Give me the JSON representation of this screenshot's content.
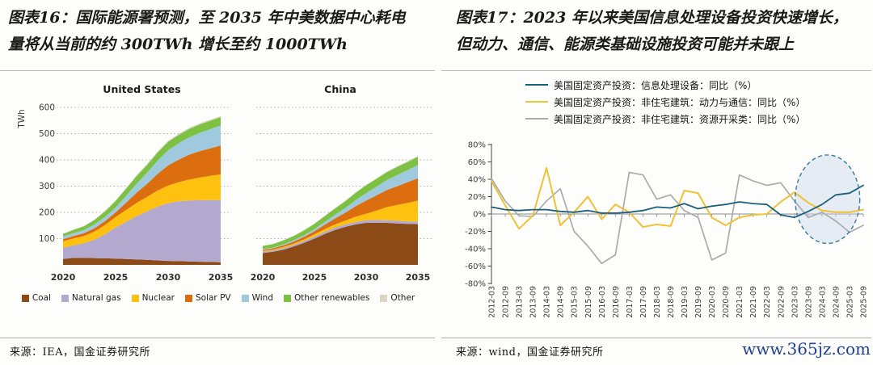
{
  "page": {
    "watermark": {
      "text": "www.365jz.com",
      "color": "#1e3f96"
    }
  },
  "left_panel": {
    "title_lines": [
      "图表16：国际能源署预测，至 2035 年中美数据中心耗电",
      "量将从当前的约 300TWh 增长至约 1000TWh"
    ],
    "source": "来源：IEA，国金证券研究所"
  },
  "right_panel": {
    "title_lines": [
      "图表17：2023 年以来美国信息处理设备投资快速增长，",
      "但动力、通信、能源类基础设施投资可能并未跟上"
    ],
    "source": "来源：wind，国金证券研究所"
  },
  "chart_data": [
    {
      "id": "us-datacenter-power",
      "type": "area",
      "stacked": true,
      "title": "United States",
      "ylabel": "TWh",
      "ylim": [
        0,
        620
      ],
      "yticks": [
        100,
        200,
        300,
        400,
        500,
        600
      ],
      "xticks": [
        2020,
        2025,
        2030,
        2035
      ],
      "grid": "dotted",
      "x": [
        2020,
        2021,
        2022,
        2023,
        2024,
        2025,
        2026,
        2027,
        2028,
        2029,
        2030,
        2031,
        2032,
        2033,
        2034,
        2035
      ],
      "series": [
        {
          "name": "Coal",
          "color": "#8b4a16",
          "values": [
            22,
            27,
            27,
            26,
            25,
            24,
            22,
            21,
            19,
            17,
            15,
            14,
            13,
            12,
            11,
            10
          ]
        },
        {
          "name": "Natural gas",
          "color": "#b3a8ce",
          "values": [
            43,
            48,
            55,
            70,
            92,
            118,
            142,
            165,
            185,
            205,
            220,
            228,
            232,
            235,
            236,
            237
          ]
        },
        {
          "name": "Nuclear",
          "color": "#fec110",
          "values": [
            25,
            26,
            28,
            31,
            35,
            40,
            45,
            50,
            55,
            61,
            67,
            73,
            80,
            86,
            92,
            98
          ]
        },
        {
          "name": "Solar PV",
          "color": "#dd6e10",
          "values": [
            8,
            9,
            11,
            13,
            15,
            18,
            28,
            39,
            50,
            64,
            77,
            86,
            95,
            100,
            105,
            110
          ]
        },
        {
          "name": "Wind",
          "color": "#9fcadd",
          "values": [
            10,
            11,
            12,
            14,
            16,
            18,
            26,
            34,
            42,
            50,
            58,
            62,
            66,
            70,
            73,
            76
          ]
        },
        {
          "name": "Other renewables",
          "color": "#7dc143",
          "values": [
            10,
            12,
            14,
            17,
            21,
            25,
            27,
            29,
            30,
            31,
            32,
            32,
            32,
            32,
            32,
            32
          ]
        },
        {
          "name": "Other",
          "color": "#d9d7c3",
          "values": [
            2,
            2,
            2,
            2,
            3,
            3,
            3,
            4,
            4,
            4,
            4,
            4,
            4,
            4,
            4,
            4
          ]
        }
      ]
    },
    {
      "id": "china-datacenter-power",
      "type": "area",
      "stacked": true,
      "title": "China",
      "ylim": [
        0,
        620
      ],
      "yticks": [
        100,
        200,
        300,
        400,
        500,
        600
      ],
      "xticks": [
        2020,
        2025,
        2030,
        2035
      ],
      "grid": "dotted",
      "x": [
        2020,
        2021,
        2022,
        2023,
        2024,
        2025,
        2026,
        2027,
        2028,
        2029,
        2030,
        2031,
        2032,
        2033,
        2034,
        2035
      ],
      "series": [
        {
          "name": "Coal",
          "color": "#8b4a16",
          "values": [
            45,
            50,
            58,
            70,
            84,
            100,
            118,
            133,
            145,
            154,
            160,
            161,
            160,
            158,
            156,
            155
          ]
        },
        {
          "name": "Natural gas",
          "color": "#b3a8ce",
          "values": [
            5,
            5,
            6,
            6,
            7,
            8,
            8,
            9,
            9,
            10,
            10,
            10,
            10,
            10,
            10,
            10
          ]
        },
        {
          "name": "Nuclear",
          "color": "#fec110",
          "values": [
            3,
            3,
            4,
            5,
            6,
            8,
            10,
            12,
            15,
            20,
            25,
            36,
            50,
            60,
            70,
            80
          ]
        },
        {
          "name": "Solar PV",
          "color": "#dd6e10",
          "values": [
            4,
            5,
            6,
            8,
            10,
            12,
            17,
            23,
            30,
            40,
            50,
            58,
            65,
            72,
            79,
            85
          ]
        },
        {
          "name": "Wind",
          "color": "#9fcadd",
          "values": [
            3,
            3,
            4,
            5,
            6,
            8,
            11,
            14,
            18,
            23,
            28,
            33,
            38,
            42,
            46,
            50
          ]
        },
        {
          "name": "Other renewables",
          "color": "#7dc143",
          "values": [
            12,
            13,
            15,
            16,
            18,
            20,
            22,
            24,
            26,
            28,
            30,
            30,
            30,
            31,
            31,
            32
          ]
        },
        {
          "name": "Other",
          "color": "#d9d7c3",
          "values": [
            1,
            1,
            1,
            1,
            2,
            2,
            2,
            2,
            2,
            2,
            2,
            2,
            3,
            3,
            3,
            3
          ]
        }
      ]
    },
    {
      "id": "us-fixed-asset-investment-yoy",
      "type": "line",
      "ylim": [
        -80,
        80
      ],
      "ytick_step": 20,
      "ytick_suffix": "%",
      "legend_position": "top-left",
      "x": [
        "2012-03",
        "2012-09",
        "2013-03",
        "2013-09",
        "2014-03",
        "2014-09",
        "2015-03",
        "2015-09",
        "2016-03",
        "2016-09",
        "2017-03",
        "2017-09",
        "2018-03",
        "2018-09",
        "2019-03",
        "2019-09",
        "2020-03",
        "2020-09",
        "2021-03",
        "2021-09",
        "2022-03",
        "2022-09",
        "2023-03",
        "2023-09",
        "2024-03",
        "2024-09",
        "2025-03",
        "2025-09"
      ],
      "series": [
        {
          "name": "美国固定资产投资：信息处理设备：同比（%）",
          "color": "#1c5f7d",
          "values": [
            8,
            5,
            4,
            5,
            5,
            3,
            2,
            4,
            1,
            1,
            2,
            4,
            8,
            7,
            12,
            6,
            9,
            11,
            14,
            12,
            11,
            -1,
            -4,
            3,
            11,
            22,
            24,
            33
          ]
        },
        {
          "name": "美国固定资产投资：非住宅建筑：动力与通信：同比（%）",
          "color": "#eec43f",
          "values": [
            38,
            10,
            -17,
            -2,
            53,
            -13,
            2,
            20,
            -6,
            11,
            2,
            -15,
            -12,
            -14,
            27,
            24,
            -4,
            -13,
            -4,
            -1,
            0,
            14,
            25,
            13,
            4,
            2,
            2,
            5
          ]
        },
        {
          "name": "美国固定资产投资：非住宅建筑：资源开采类：同比（%）",
          "color": "#ababab",
          "values": [
            41,
            15,
            -2,
            -3,
            15,
            29,
            -20,
            -37,
            -57,
            -47,
            48,
            45,
            17,
            22,
            4,
            -4,
            -53,
            -45,
            45,
            38,
            33,
            36,
            15,
            -4,
            2,
            -8,
            -21,
            -13
          ]
        }
      ],
      "annotation_ellipse": {
        "center_index": 24.4,
        "center_value": 17,
        "radius_ticks": 2.35,
        "radius_value": 51,
        "stroke": "#34789e",
        "fill": "#c8d7eb",
        "style": "dashed"
      }
    }
  ]
}
